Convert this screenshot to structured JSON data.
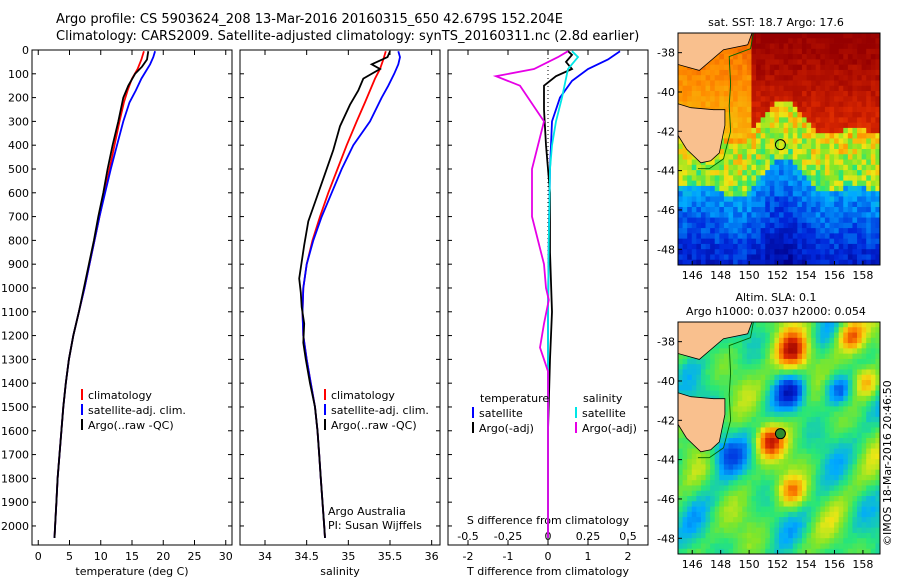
{
  "header": {
    "line1": "Argo profile: CS 5903624_208 13-Mar-2016 20160315_650 42.679S 152.204E",
    "line2": "Climatology: CARS2009. Satellite-adjusted climatology: synTS_20160311.nc (2.8d earlier)"
  },
  "colors": {
    "climatology": "#ff0000",
    "satellite": "#0000ff",
    "argo": "#000000",
    "sal_satellite": "#00e6e6",
    "sal_argo": "#e600e6",
    "land": "#f9c08e"
  },
  "chart_data": [
    {
      "type": "line",
      "panel": "temperature",
      "xlabel": "temperature (deg C)",
      "xlim": [
        -1,
        31
      ],
      "xticks": [
        0,
        5,
        10,
        15,
        20,
        25,
        30
      ],
      "ylim": [
        2080,
        0
      ],
      "yticks": [
        0,
        100,
        200,
        300,
        400,
        500,
        600,
        700,
        800,
        900,
        1000,
        1100,
        1200,
        1300,
        1400,
        1500,
        1600,
        1700,
        1800,
        1900,
        2000
      ],
      "legend": [
        "climatology",
        "satellite-adj. clim.",
        "Argo(..raw -QC)"
      ],
      "series": [
        {
          "name": "climatology",
          "color": "#ff0000",
          "points": [
            [
              16.9,
              5
            ],
            [
              16.5,
              40
            ],
            [
              15.9,
              80
            ],
            [
              15.0,
              120
            ],
            [
              14.3,
              170
            ],
            [
              13.7,
              220
            ],
            [
              13.0,
              300
            ],
            [
              12.2,
              400
            ],
            [
              11.4,
              500
            ],
            [
              10.6,
              600
            ],
            [
              9.8,
              700
            ],
            [
              9.0,
              800
            ],
            [
              8.2,
              900
            ],
            [
              7.4,
              1000
            ],
            [
              6.5,
              1100
            ],
            [
              5.6,
              1200
            ],
            [
              4.9,
              1300
            ],
            [
              4.4,
              1400
            ],
            [
              4.0,
              1500
            ],
            [
              3.7,
              1600
            ],
            [
              3.4,
              1700
            ],
            [
              3.1,
              1800
            ],
            [
              2.9,
              1900
            ],
            [
              2.7,
              2000
            ],
            [
              2.6,
              2050
            ]
          ]
        },
        {
          "name": "satellite-adj. clim.",
          "color": "#0000ff",
          "points": [
            [
              18.7,
              5
            ],
            [
              18.4,
              30
            ],
            [
              17.9,
              60
            ],
            [
              17.2,
              90
            ],
            [
              16.5,
              120
            ],
            [
              15.6,
              170
            ],
            [
              14.6,
              220
            ],
            [
              13.6,
              300
            ],
            [
              12.6,
              400
            ],
            [
              11.6,
              500
            ],
            [
              10.7,
              600
            ],
            [
              9.8,
              700
            ],
            [
              9.0,
              800
            ],
            [
              8.2,
              900
            ],
            [
              7.4,
              1000
            ],
            [
              6.5,
              1100
            ],
            [
              5.6,
              1200
            ],
            [
              4.9,
              1300
            ],
            [
              4.4,
              1400
            ],
            [
              4.0,
              1500
            ],
            [
              3.7,
              1600
            ],
            [
              3.4,
              1700
            ],
            [
              3.1,
              1800
            ],
            [
              2.9,
              1900
            ],
            [
              2.7,
              2000
            ],
            [
              2.6,
              2050
            ]
          ]
        },
        {
          "name": "Argo(..raw -QC)",
          "color": "#000000",
          "points": [
            [
              17.6,
              5
            ],
            [
              17.4,
              40
            ],
            [
              16.6,
              70
            ],
            [
              15.5,
              100
            ],
            [
              14.4,
              150
            ],
            [
              13.6,
              200
            ],
            [
              12.8,
              300
            ],
            [
              11.9,
              400
            ],
            [
              11.1,
              500
            ],
            [
              10.4,
              600
            ],
            [
              9.6,
              700
            ],
            [
              8.9,
              800
            ],
            [
              8.1,
              900
            ],
            [
              7.3,
              1000
            ],
            [
              6.5,
              1100
            ],
            [
              5.6,
              1200
            ],
            [
              4.9,
              1300
            ],
            [
              4.4,
              1400
            ],
            [
              4.0,
              1500
            ],
            [
              3.7,
              1600
            ],
            [
              3.4,
              1700
            ],
            [
              3.1,
              1800
            ],
            [
              2.9,
              1900
            ],
            [
              2.7,
              2000
            ],
            [
              2.6,
              2050
            ]
          ]
        }
      ]
    },
    {
      "type": "line",
      "panel": "salinity",
      "xlabel": "salinity",
      "xlim": [
        33.7,
        36.1
      ],
      "xticks": [
        34,
        34.5,
        35,
        35.5,
        36
      ],
      "ylim": [
        2080,
        0
      ],
      "legend": [
        "climatology",
        "satellite-adj. clim.",
        "Argo(..raw -QC)"
      ],
      "annotation": [
        "Argo Australia",
        "PI: Susan Wijffels"
      ],
      "series": [
        {
          "name": "climatology",
          "color": "#ff0000",
          "points": [
            [
              35.45,
              5
            ],
            [
              35.42,
              40
            ],
            [
              35.38,
              80
            ],
            [
              35.32,
              120
            ],
            [
              35.26,
              170
            ],
            [
              35.2,
              220
            ],
            [
              35.1,
              300
            ],
            [
              34.98,
              400
            ],
            [
              34.87,
              500
            ],
            [
              34.76,
              600
            ],
            [
              34.66,
              700
            ],
            [
              34.57,
              800
            ],
            [
              34.5,
              900
            ],
            [
              34.46,
              1000
            ],
            [
              34.45,
              1100
            ],
            [
              34.46,
              1200
            ],
            [
              34.5,
              1300
            ],
            [
              34.55,
              1400
            ],
            [
              34.6,
              1500
            ],
            [
              34.63,
              1600
            ],
            [
              34.65,
              1700
            ],
            [
              34.67,
              1800
            ],
            [
              34.69,
              1900
            ],
            [
              34.71,
              2000
            ],
            [
              34.72,
              2050
            ]
          ]
        },
        {
          "name": "satellite-adj. clim.",
          "color": "#0000ff",
          "points": [
            [
              35.6,
              5
            ],
            [
              35.62,
              30
            ],
            [
              35.6,
              60
            ],
            [
              35.55,
              100
            ],
            [
              35.48,
              150
            ],
            [
              35.4,
              200
            ],
            [
              35.26,
              300
            ],
            [
              35.06,
              400
            ],
            [
              34.92,
              500
            ],
            [
              34.8,
              600
            ],
            [
              34.68,
              700
            ],
            [
              34.58,
              800
            ],
            [
              34.5,
              900
            ],
            [
              34.46,
              1000
            ],
            [
              34.45,
              1100
            ],
            [
              34.46,
              1200
            ],
            [
              34.5,
              1300
            ],
            [
              34.55,
              1400
            ],
            [
              34.6,
              1500
            ],
            [
              34.63,
              1600
            ],
            [
              34.65,
              1700
            ],
            [
              34.67,
              1800
            ],
            [
              34.69,
              1900
            ],
            [
              34.71,
              2000
            ],
            [
              34.72,
              2050
            ]
          ]
        },
        {
          "name": "Argo(..raw -QC)",
          "color": "#000000",
          "points": [
            [
              35.5,
              5
            ],
            [
              35.47,
              30
            ],
            [
              35.28,
              60
            ],
            [
              35.38,
              80
            ],
            [
              35.18,
              120
            ],
            [
              35.12,
              170
            ],
            [
              35.02,
              230
            ],
            [
              34.9,
              320
            ],
            [
              34.82,
              420
            ],
            [
              34.72,
              520
            ],
            [
              34.62,
              620
            ],
            [
              34.52,
              720
            ],
            [
              34.47,
              820
            ],
            [
              34.41,
              960
            ],
            [
              34.43,
              1020
            ],
            [
              34.44,
              1080
            ],
            [
              34.47,
              1150
            ],
            [
              34.46,
              1230
            ],
            [
              34.49,
              1300
            ],
            [
              34.54,
              1400
            ],
            [
              34.6,
              1500
            ],
            [
              34.63,
              1600
            ],
            [
              34.65,
              1700
            ],
            [
              34.67,
              1800
            ],
            [
              34.69,
              1900
            ],
            [
              34.71,
              2000
            ],
            [
              34.72,
              2050
            ]
          ]
        }
      ]
    },
    {
      "type": "line",
      "panel": "difference",
      "xlabel": "T difference from climatology",
      "xlabel_top": "S difference from climatology",
      "xlim": [
        -2.5,
        2.5
      ],
      "xticks": [
        -2,
        -1,
        0,
        1,
        2
      ],
      "xticks_top": [
        -0.5,
        -0.25,
        0,
        0.25,
        0.5
      ],
      "ylim": [
        2080,
        0
      ],
      "legend": {
        "temperature": "temperature",
        "salinity": "salinity",
        "t_satellite": "satellite",
        "t_argo": "Argo(-adj)",
        "s_satellite": "satellite",
        "s_argo": "Argo(-adj)"
      },
      "series": [
        {
          "name": "T satellite",
          "color": "#0000ff",
          "points": [
            [
              1.8,
              5
            ],
            [
              1.5,
              40
            ],
            [
              1.0,
              80
            ],
            [
              0.6,
              130
            ],
            [
              0.3,
              200
            ],
            [
              0.1,
              300
            ],
            [
              0.05,
              500
            ],
            [
              0.02,
              800
            ],
            [
              0,
              1100
            ],
            [
              0,
              1600
            ],
            [
              0,
              2050
            ]
          ]
        },
        {
          "name": "T Argo(-adj)",
          "color": "#000000",
          "points": [
            [
              0.5,
              5
            ],
            [
              0.6,
              20
            ],
            [
              0.45,
              50
            ],
            [
              0.6,
              80
            ],
            [
              0.2,
              110
            ],
            [
              -0.1,
              150
            ],
            [
              -0.1,
              250
            ],
            [
              -0.05,
              400
            ],
            [
              0.05,
              600
            ],
            [
              0.05,
              850
            ],
            [
              0.1,
              1100
            ],
            [
              0.05,
              1300
            ],
            [
              0,
              1600
            ],
            [
              0,
              2050
            ]
          ]
        },
        {
          "name": "S satellite",
          "color": "#00e6e6",
          "points": [
            [
              0.6,
              5
            ],
            [
              0.75,
              30
            ],
            [
              0.5,
              80
            ],
            [
              0.35,
              200
            ],
            [
              0.2,
              300
            ],
            [
              0.1,
              400
            ],
            [
              0.05,
              500
            ],
            [
              0.02,
              800
            ],
            [
              0,
              1100
            ],
            [
              0,
              1600
            ],
            [
              0,
              2050
            ]
          ]
        },
        {
          "name": "S Argo(-adj)",
          "color": "#e600e6",
          "points": [
            [
              0.5,
              5
            ],
            [
              0.25,
              30
            ],
            [
              -0.35,
              80
            ],
            [
              -1.3,
              110
            ],
            [
              -0.7,
              150
            ],
            [
              -0.1,
              300
            ],
            [
              -0.4,
              500
            ],
            [
              -0.4,
              700
            ],
            [
              -0.1,
              900
            ],
            [
              -0.05,
              1000
            ],
            [
              0.02,
              1050
            ],
            [
              -0.1,
              1150
            ],
            [
              -0.2,
              1250
            ],
            [
              0,
              1350
            ],
            [
              0,
              1600
            ],
            [
              0,
              2050
            ]
          ]
        }
      ]
    }
  ],
  "map_sst": {
    "title": "sat. SST: 18.7  Argo: 17.6",
    "xticks": [
      "146",
      "148",
      "150",
      "152",
      "154",
      "156",
      "158"
    ],
    "yticks": [
      "-38",
      "-40",
      "-42",
      "-44",
      "-46",
      "-48"
    ],
    "float_position": {
      "lon": 152.2,
      "lat": -42.68
    }
  },
  "map_sla": {
    "title1": "Altim. SLA: 0.1",
    "title2": "Argo h1000: 0.037  h2000: 0.054",
    "xticks": [
      "146",
      "148",
      "150",
      "152",
      "154",
      "156",
      "158"
    ],
    "yticks": [
      "-38",
      "-40",
      "-42",
      "-44",
      "-46",
      "-48"
    ],
    "float_position": {
      "lon": 152.2,
      "lat": -42.68
    }
  },
  "footer": {
    "copyright": "©IMOS 18-Mar-2016 20:46:50"
  }
}
